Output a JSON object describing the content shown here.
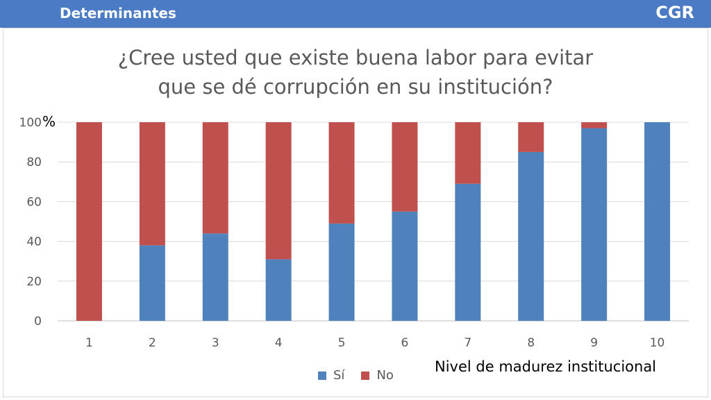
{
  "header": {
    "title": "Determinantes",
    "logo": "CGR",
    "color": "#4a7bc4"
  },
  "chart_data": {
    "type": "bar",
    "stacked": true,
    "title_lines": [
      "¿Cree usted que existe buena labor para evitar",
      "que se dé corrupción en su institución?"
    ],
    "xlabel": "Nivel de madurez institucional",
    "ylabel": "%",
    "categories": [
      "1",
      "2",
      "3",
      "4",
      "5",
      "6",
      "7",
      "8",
      "9",
      "10"
    ],
    "series": [
      {
        "name": "Sí",
        "color": "#4f81bd",
        "values": [
          0,
          38,
          44,
          31,
          49,
          55,
          69,
          85,
          97,
          100
        ]
      },
      {
        "name": "No",
        "color": "#c0504d",
        "values": [
          100,
          62,
          56,
          69,
          51,
          45,
          31,
          15,
          3,
          0
        ]
      }
    ],
    "ylim": [
      0,
      100
    ],
    "yticks": [
      0,
      20,
      40,
      60,
      80,
      100
    ],
    "ytick_labels": [
      "0",
      "20",
      "40",
      "60",
      "80",
      "100"
    ],
    "grid": true,
    "legend_position": "bottom-center"
  }
}
